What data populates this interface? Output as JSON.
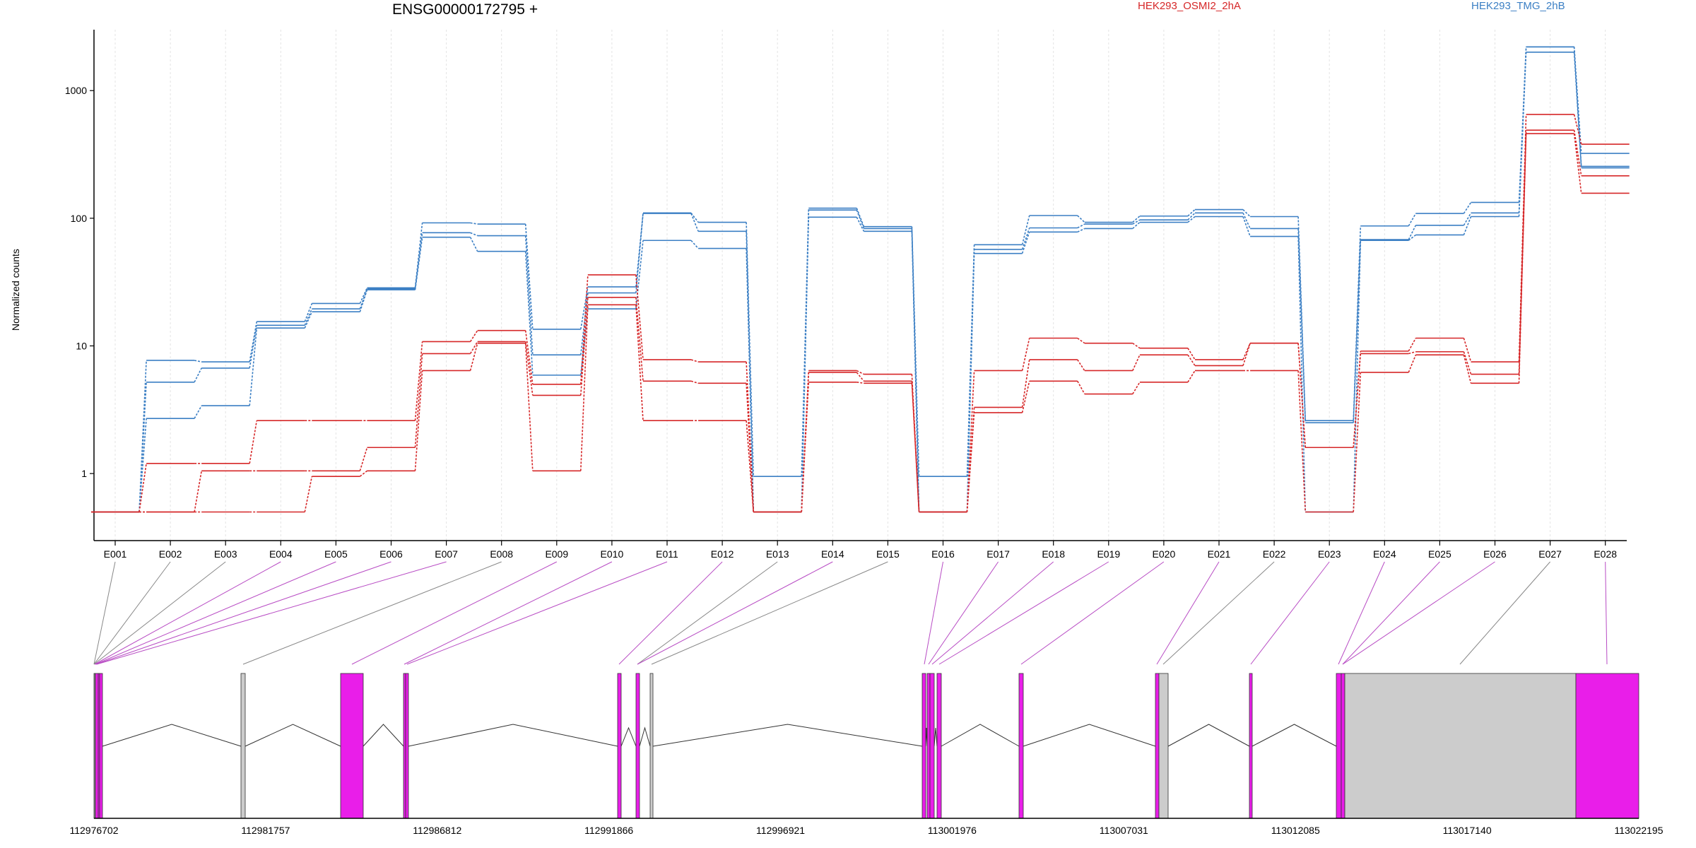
{
  "chart_data": {
    "type": "line",
    "title": "ENSG00000172795 +",
    "ylabel": "Normalized counts",
    "yscale": "log",
    "ylim": [
      0.4,
      3000
    ],
    "yticks": [
      1,
      10,
      100,
      1000
    ],
    "ytick_labels": [
      "1",
      "10",
      "100",
      "1000"
    ],
    "categories": [
      "E001",
      "E002",
      "E003",
      "E004",
      "E005",
      "E006",
      "E007",
      "E008",
      "E009",
      "E010",
      "E011",
      "E012",
      "E013",
      "E014",
      "E015",
      "E016",
      "E017",
      "E018",
      "E019",
      "E020",
      "E021",
      "E022",
      "E023",
      "E024",
      "E025",
      "E026",
      "E027",
      "E028"
    ],
    "legend": [
      "HEK293_OSMI2_2hA",
      "HEK293_TMG_2hB"
    ],
    "series": [
      {
        "group": "HEK293_TMG_2hB",
        "color": "#3b7fc4",
        "values": [
          0.5,
          7.7,
          7.5,
          15.5,
          21.5,
          28.5,
          92.0,
          90.0,
          13.5,
          29.0,
          110.0,
          93.0,
          0.95,
          120.0,
          86.0,
          0.95,
          62.0,
          105.0,
          93.0,
          104.0,
          117.0,
          103.0,
          2.6,
          87.0,
          109.0,
          133.0,
          2200.0,
          255.0
        ]
      },
      {
        "group": "HEK293_TMG_2hB",
        "color": "#3b7fc4",
        "values": [
          0.5,
          5.2,
          6.7,
          14.5,
          19.5,
          28.0,
          77.0,
          73.0,
          8.5,
          26.0,
          109.0,
          79.0,
          0.5,
          116.0,
          83.0,
          0.5,
          57.0,
          84.0,
          90.0,
          97.0,
          110.0,
          83.0,
          2.5,
          68.0,
          88.0,
          110.0,
          2200.0,
          322.0
        ]
      },
      {
        "group": "HEK293_TMG_2hB",
        "color": "#3b7fc4",
        "values": [
          0.5,
          2.7,
          3.4,
          13.8,
          18.5,
          27.5,
          71.0,
          55.0,
          5.9,
          19.5,
          67.0,
          58.0,
          0.5,
          102.0,
          79.0,
          0.5,
          53.0,
          78.0,
          83.0,
          93.0,
          103.0,
          72.0,
          0.5,
          67.0,
          74.0,
          103.0,
          2000.0,
          248.0
        ]
      },
      {
        "group": "HEK293_OSMI2_2hA",
        "color": "#d62728",
        "values": [
          0.5,
          1.2,
          1.2,
          2.6,
          2.6,
          2.6,
          10.8,
          13.2,
          5.0,
          36.0,
          7.8,
          7.5,
          0.5,
          6.4,
          6.0,
          0.5,
          6.4,
          11.5,
          10.5,
          9.6,
          7.8,
          10.5,
          1.6,
          9.1,
          11.5,
          7.5,
          650.0,
          380.0
        ]
      },
      {
        "group": "HEK293_OSMI2_2hA",
        "color": "#d62728",
        "values": [
          0.5,
          0.5,
          1.05,
          1.05,
          1.05,
          1.6,
          8.7,
          10.8,
          4.1,
          24.0,
          5.3,
          5.1,
          0.5,
          6.2,
          5.3,
          0.5,
          3.3,
          7.8,
          6.4,
          8.5,
          7.0,
          10.5,
          1.6,
          8.7,
          9.0,
          6.0,
          490.0,
          215.0
        ]
      },
      {
        "group": "HEK293_OSMI2_2hA",
        "color": "#d62728",
        "values": [
          0.5,
          0.5,
          0.5,
          0.5,
          0.95,
          1.05,
          6.4,
          10.5,
          1.05,
          21.0,
          2.6,
          2.6,
          0.5,
          5.2,
          5.1,
          0.5,
          3.0,
          5.3,
          4.2,
          5.2,
          6.4,
          6.4,
          0.5,
          6.2,
          8.5,
          5.1,
          460.0,
          157.0
        ]
      }
    ],
    "gene_model": {
      "genomic_ticks": [
        "112976702",
        "112981757",
        "112986812",
        "112991866",
        "112996921",
        "113001976",
        "113007031",
        "113012085",
        "113017140",
        "113022195"
      ]
    }
  }
}
